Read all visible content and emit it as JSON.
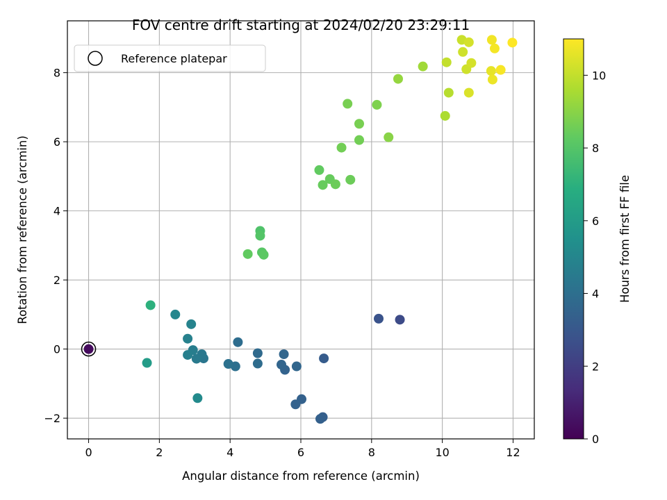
{
  "chart_data": {
    "type": "scatter",
    "title": "FOV centre drift starting at 2024/02/20 23:29:11",
    "xlabel": "Angular distance from reference (arcmin)",
    "ylabel": "Rotation from reference (arcmin)",
    "xlim": [
      -0.6,
      12.6
    ],
    "ylim": [
      -2.6,
      9.5
    ],
    "xticks": [
      0,
      2,
      4,
      6,
      8,
      10,
      12
    ],
    "xtick_labels": [
      "0",
      "2",
      "4",
      "6",
      "8",
      "10",
      "12"
    ],
    "yticks": [
      -2,
      0,
      2,
      4,
      6,
      8
    ],
    "ytick_labels": [
      "−2",
      "0",
      "2",
      "4",
      "6",
      "8"
    ],
    "grid": true,
    "legend": {
      "entries": [
        "Reference platepar"
      ],
      "placement": "top-left"
    },
    "reference_point": {
      "x": 0,
      "y": 0
    },
    "colorbar": {
      "label": "Hours from first FF file",
      "colormap": "viridis",
      "range": [
        0,
        11
      ],
      "ticks": [
        0,
        2,
        4,
        6,
        8,
        10
      ],
      "tick_labels": [
        "0",
        "2",
        "4",
        "6",
        "8",
        "10"
      ]
    },
    "series": [
      {
        "points": [
          {
            "x": 0.0,
            "y": 0.0,
            "c": 0.3
          },
          {
            "x": 8.8,
            "y": 0.85,
            "c": 2.5
          },
          {
            "x": 8.2,
            "y": 0.88,
            "c": 2.8
          },
          {
            "x": 6.65,
            "y": -0.27,
            "c": 3.2
          },
          {
            "x": 6.62,
            "y": -1.97,
            "c": 3.3
          },
          {
            "x": 6.55,
            "y": -2.02,
            "c": 3.35
          },
          {
            "x": 6.02,
            "y": -1.45,
            "c": 3.4
          },
          {
            "x": 5.85,
            "y": -1.6,
            "c": 3.45
          },
          {
            "x": 5.55,
            "y": -0.6,
            "c": 3.5
          },
          {
            "x": 5.45,
            "y": -0.45,
            "c": 3.55
          },
          {
            "x": 5.52,
            "y": -0.15,
            "c": 3.6
          },
          {
            "x": 5.88,
            "y": -0.5,
            "c": 3.6
          },
          {
            "x": 4.78,
            "y": -0.12,
            "c": 3.8
          },
          {
            "x": 4.78,
            "y": -0.42,
            "c": 3.85
          },
          {
            "x": 4.22,
            "y": 0.2,
            "c": 3.9
          },
          {
            "x": 4.15,
            "y": -0.5,
            "c": 4.0
          },
          {
            "x": 3.95,
            "y": -0.43,
            "c": 4.1
          },
          {
            "x": 3.25,
            "y": -0.27,
            "c": 4.3
          },
          {
            "x": 3.2,
            "y": -0.15,
            "c": 4.4
          },
          {
            "x": 3.05,
            "y": -0.28,
            "c": 4.5
          },
          {
            "x": 2.95,
            "y": -0.03,
            "c": 4.6
          },
          {
            "x": 2.8,
            "y": -0.17,
            "c": 4.7
          },
          {
            "x": 2.8,
            "y": 0.3,
            "c": 4.8
          },
          {
            "x": 2.9,
            "y": 0.72,
            "c": 4.9
          },
          {
            "x": 2.45,
            "y": 1.0,
            "c": 5.0
          },
          {
            "x": 3.08,
            "y": -1.42,
            "c": 5.2
          },
          {
            "x": 1.65,
            "y": -0.4,
            "c": 6.0
          },
          {
            "x": 1.75,
            "y": 1.27,
            "c": 7.0
          },
          {
            "x": 4.85,
            "y": 3.42,
            "c": 7.9
          },
          {
            "x": 4.85,
            "y": 3.28,
            "c": 8.0
          },
          {
            "x": 4.9,
            "y": 2.8,
            "c": 8.1
          },
          {
            "x": 4.95,
            "y": 2.73,
            "c": 8.2
          },
          {
            "x": 4.5,
            "y": 2.75,
            "c": 8.3
          },
          {
            "x": 6.52,
            "y": 5.18,
            "c": 8.3
          },
          {
            "x": 6.62,
            "y": 4.75,
            "c": 8.4
          },
          {
            "x": 6.82,
            "y": 4.92,
            "c": 8.4
          },
          {
            "x": 6.98,
            "y": 4.77,
            "c": 8.5
          },
          {
            "x": 7.4,
            "y": 4.9,
            "c": 8.5
          },
          {
            "x": 7.15,
            "y": 5.83,
            "c": 8.6
          },
          {
            "x": 7.65,
            "y": 6.05,
            "c": 8.6
          },
          {
            "x": 7.65,
            "y": 6.52,
            "c": 8.7
          },
          {
            "x": 7.32,
            "y": 7.1,
            "c": 8.7
          },
          {
            "x": 8.15,
            "y": 7.07,
            "c": 8.8
          },
          {
            "x": 8.48,
            "y": 6.13,
            "c": 9.0
          },
          {
            "x": 8.75,
            "y": 7.82,
            "c": 9.2
          },
          {
            "x": 9.45,
            "y": 8.18,
            "c": 9.4
          },
          {
            "x": 10.08,
            "y": 6.75,
            "c": 9.6
          },
          {
            "x": 10.18,
            "y": 7.42,
            "c": 9.8
          },
          {
            "x": 10.12,
            "y": 8.3,
            "c": 10.0
          },
          {
            "x": 10.55,
            "y": 8.95,
            "c": 10.1
          },
          {
            "x": 10.58,
            "y": 8.6,
            "c": 10.2
          },
          {
            "x": 10.68,
            "y": 8.1,
            "c": 10.2
          },
          {
            "x": 10.75,
            "y": 8.88,
            "c": 10.3
          },
          {
            "x": 10.82,
            "y": 8.28,
            "c": 10.3
          },
          {
            "x": 10.75,
            "y": 7.42,
            "c": 10.4
          },
          {
            "x": 11.38,
            "y": 8.05,
            "c": 10.6
          },
          {
            "x": 11.42,
            "y": 7.8,
            "c": 10.7
          },
          {
            "x": 11.4,
            "y": 8.95,
            "c": 10.8
          },
          {
            "x": 11.48,
            "y": 8.7,
            "c": 10.85
          },
          {
            "x": 11.65,
            "y": 8.08,
            "c": 10.9
          },
          {
            "x": 11.98,
            "y": 8.87,
            "c": 11.0
          }
        ]
      }
    ]
  }
}
